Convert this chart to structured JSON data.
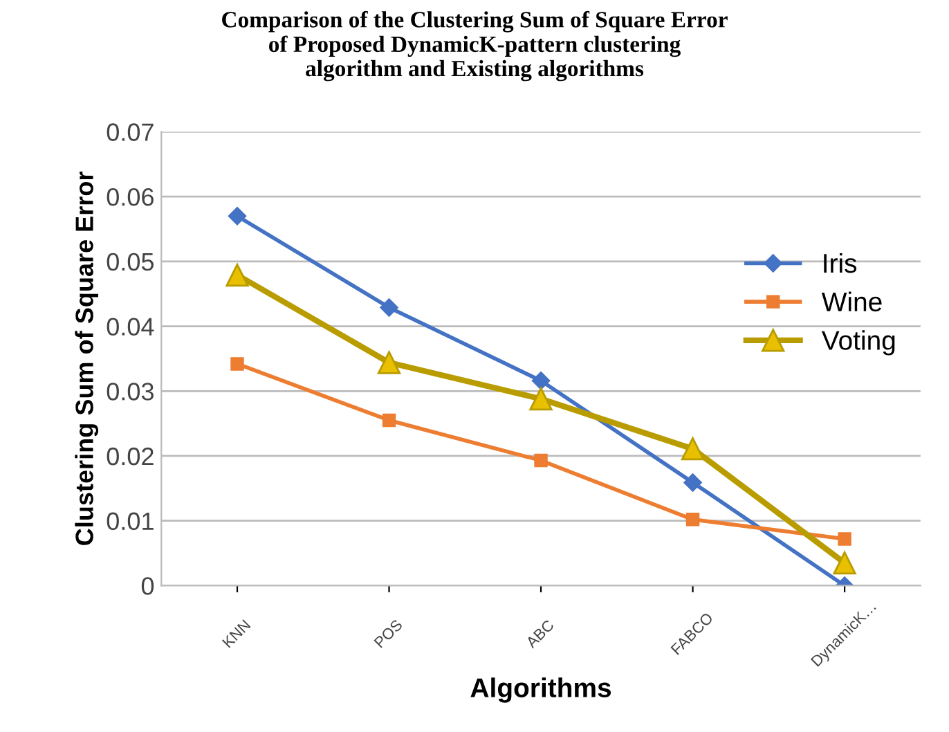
{
  "chart_data": {
    "type": "line",
    "title": "Comparison of the Clustering Sum of Square Error\nof Proposed DynamicK-pattern clustering\nalgorithm and Existing algorithms",
    "xlabel": "Algorithms",
    "ylabel": "Clustering Sum of Square Error",
    "categories": [
      "KNN",
      "POS",
      "ABC",
      "FABCO",
      "DynamicK…"
    ],
    "series": [
      {
        "name": "Iris",
        "color": "#4472c4",
        "marker": "diamond",
        "values": [
          0.057,
          0.0429,
          0.0316,
          0.0159,
          0.0
        ]
      },
      {
        "name": "Wine",
        "color": "#ed7d31",
        "marker": "square",
        "values": [
          0.0342,
          0.0255,
          0.0193,
          0.0102,
          0.0072
        ]
      },
      {
        "name": "Voting",
        "color": "#b89c00",
        "marker": "triangle",
        "values": [
          0.0479,
          0.0344,
          0.0288,
          0.0211,
          0.0035
        ]
      }
    ],
    "ylim": [
      0,
      0.07
    ],
    "yticks": [
      0,
      0.01,
      0.02,
      0.03,
      0.04,
      0.05,
      0.06,
      0.07
    ],
    "grid": "y",
    "legend": "right"
  }
}
